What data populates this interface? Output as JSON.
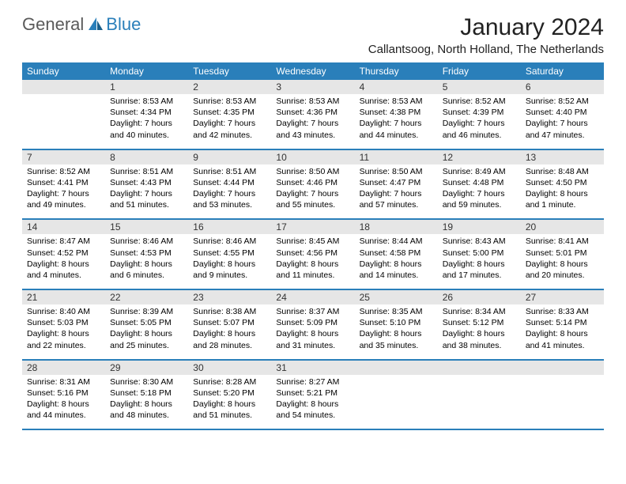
{
  "logo": {
    "general": "General",
    "blue": "Blue"
  },
  "header": {
    "month_year": "January 2024",
    "location": "Callantsoog, North Holland, The Netherlands"
  },
  "colors": {
    "header_bg": "#2a7fba",
    "header_text": "#ffffff",
    "daynum_bg": "#e6e6e6",
    "border": "#2a7fba"
  },
  "day_names": [
    "Sunday",
    "Monday",
    "Tuesday",
    "Wednesday",
    "Thursday",
    "Friday",
    "Saturday"
  ],
  "weeks": [
    [
      {
        "n": "",
        "sr": "",
        "ss": "",
        "d1": "",
        "d2": ""
      },
      {
        "n": "1",
        "sr": "Sunrise: 8:53 AM",
        "ss": "Sunset: 4:34 PM",
        "d1": "Daylight: 7 hours",
        "d2": "and 40 minutes."
      },
      {
        "n": "2",
        "sr": "Sunrise: 8:53 AM",
        "ss": "Sunset: 4:35 PM",
        "d1": "Daylight: 7 hours",
        "d2": "and 42 minutes."
      },
      {
        "n": "3",
        "sr": "Sunrise: 8:53 AM",
        "ss": "Sunset: 4:36 PM",
        "d1": "Daylight: 7 hours",
        "d2": "and 43 minutes."
      },
      {
        "n": "4",
        "sr": "Sunrise: 8:53 AM",
        "ss": "Sunset: 4:38 PM",
        "d1": "Daylight: 7 hours",
        "d2": "and 44 minutes."
      },
      {
        "n": "5",
        "sr": "Sunrise: 8:52 AM",
        "ss": "Sunset: 4:39 PM",
        "d1": "Daylight: 7 hours",
        "d2": "and 46 minutes."
      },
      {
        "n": "6",
        "sr": "Sunrise: 8:52 AM",
        "ss": "Sunset: 4:40 PM",
        "d1": "Daylight: 7 hours",
        "d2": "and 47 minutes."
      }
    ],
    [
      {
        "n": "7",
        "sr": "Sunrise: 8:52 AM",
        "ss": "Sunset: 4:41 PM",
        "d1": "Daylight: 7 hours",
        "d2": "and 49 minutes."
      },
      {
        "n": "8",
        "sr": "Sunrise: 8:51 AM",
        "ss": "Sunset: 4:43 PM",
        "d1": "Daylight: 7 hours",
        "d2": "and 51 minutes."
      },
      {
        "n": "9",
        "sr": "Sunrise: 8:51 AM",
        "ss": "Sunset: 4:44 PM",
        "d1": "Daylight: 7 hours",
        "d2": "and 53 minutes."
      },
      {
        "n": "10",
        "sr": "Sunrise: 8:50 AM",
        "ss": "Sunset: 4:46 PM",
        "d1": "Daylight: 7 hours",
        "d2": "and 55 minutes."
      },
      {
        "n": "11",
        "sr": "Sunrise: 8:50 AM",
        "ss": "Sunset: 4:47 PM",
        "d1": "Daylight: 7 hours",
        "d2": "and 57 minutes."
      },
      {
        "n": "12",
        "sr": "Sunrise: 8:49 AM",
        "ss": "Sunset: 4:48 PM",
        "d1": "Daylight: 7 hours",
        "d2": "and 59 minutes."
      },
      {
        "n": "13",
        "sr": "Sunrise: 8:48 AM",
        "ss": "Sunset: 4:50 PM",
        "d1": "Daylight: 8 hours",
        "d2": "and 1 minute."
      }
    ],
    [
      {
        "n": "14",
        "sr": "Sunrise: 8:47 AM",
        "ss": "Sunset: 4:52 PM",
        "d1": "Daylight: 8 hours",
        "d2": "and 4 minutes."
      },
      {
        "n": "15",
        "sr": "Sunrise: 8:46 AM",
        "ss": "Sunset: 4:53 PM",
        "d1": "Daylight: 8 hours",
        "d2": "and 6 minutes."
      },
      {
        "n": "16",
        "sr": "Sunrise: 8:46 AM",
        "ss": "Sunset: 4:55 PM",
        "d1": "Daylight: 8 hours",
        "d2": "and 9 minutes."
      },
      {
        "n": "17",
        "sr": "Sunrise: 8:45 AM",
        "ss": "Sunset: 4:56 PM",
        "d1": "Daylight: 8 hours",
        "d2": "and 11 minutes."
      },
      {
        "n": "18",
        "sr": "Sunrise: 8:44 AM",
        "ss": "Sunset: 4:58 PM",
        "d1": "Daylight: 8 hours",
        "d2": "and 14 minutes."
      },
      {
        "n": "19",
        "sr": "Sunrise: 8:43 AM",
        "ss": "Sunset: 5:00 PM",
        "d1": "Daylight: 8 hours",
        "d2": "and 17 minutes."
      },
      {
        "n": "20",
        "sr": "Sunrise: 8:41 AM",
        "ss": "Sunset: 5:01 PM",
        "d1": "Daylight: 8 hours",
        "d2": "and 20 minutes."
      }
    ],
    [
      {
        "n": "21",
        "sr": "Sunrise: 8:40 AM",
        "ss": "Sunset: 5:03 PM",
        "d1": "Daylight: 8 hours",
        "d2": "and 22 minutes."
      },
      {
        "n": "22",
        "sr": "Sunrise: 8:39 AM",
        "ss": "Sunset: 5:05 PM",
        "d1": "Daylight: 8 hours",
        "d2": "and 25 minutes."
      },
      {
        "n": "23",
        "sr": "Sunrise: 8:38 AM",
        "ss": "Sunset: 5:07 PM",
        "d1": "Daylight: 8 hours",
        "d2": "and 28 minutes."
      },
      {
        "n": "24",
        "sr": "Sunrise: 8:37 AM",
        "ss": "Sunset: 5:09 PM",
        "d1": "Daylight: 8 hours",
        "d2": "and 31 minutes."
      },
      {
        "n": "25",
        "sr": "Sunrise: 8:35 AM",
        "ss": "Sunset: 5:10 PM",
        "d1": "Daylight: 8 hours",
        "d2": "and 35 minutes."
      },
      {
        "n": "26",
        "sr": "Sunrise: 8:34 AM",
        "ss": "Sunset: 5:12 PM",
        "d1": "Daylight: 8 hours",
        "d2": "and 38 minutes."
      },
      {
        "n": "27",
        "sr": "Sunrise: 8:33 AM",
        "ss": "Sunset: 5:14 PM",
        "d1": "Daylight: 8 hours",
        "d2": "and 41 minutes."
      }
    ],
    [
      {
        "n": "28",
        "sr": "Sunrise: 8:31 AM",
        "ss": "Sunset: 5:16 PM",
        "d1": "Daylight: 8 hours",
        "d2": "and 44 minutes."
      },
      {
        "n": "29",
        "sr": "Sunrise: 8:30 AM",
        "ss": "Sunset: 5:18 PM",
        "d1": "Daylight: 8 hours",
        "d2": "and 48 minutes."
      },
      {
        "n": "30",
        "sr": "Sunrise: 8:28 AM",
        "ss": "Sunset: 5:20 PM",
        "d1": "Daylight: 8 hours",
        "d2": "and 51 minutes."
      },
      {
        "n": "31",
        "sr": "Sunrise: 8:27 AM",
        "ss": "Sunset: 5:21 PM",
        "d1": "Daylight: 8 hours",
        "d2": "and 54 minutes."
      },
      {
        "n": "",
        "sr": "",
        "ss": "",
        "d1": "",
        "d2": ""
      },
      {
        "n": "",
        "sr": "",
        "ss": "",
        "d1": "",
        "d2": ""
      },
      {
        "n": "",
        "sr": "",
        "ss": "",
        "d1": "",
        "d2": ""
      }
    ]
  ]
}
